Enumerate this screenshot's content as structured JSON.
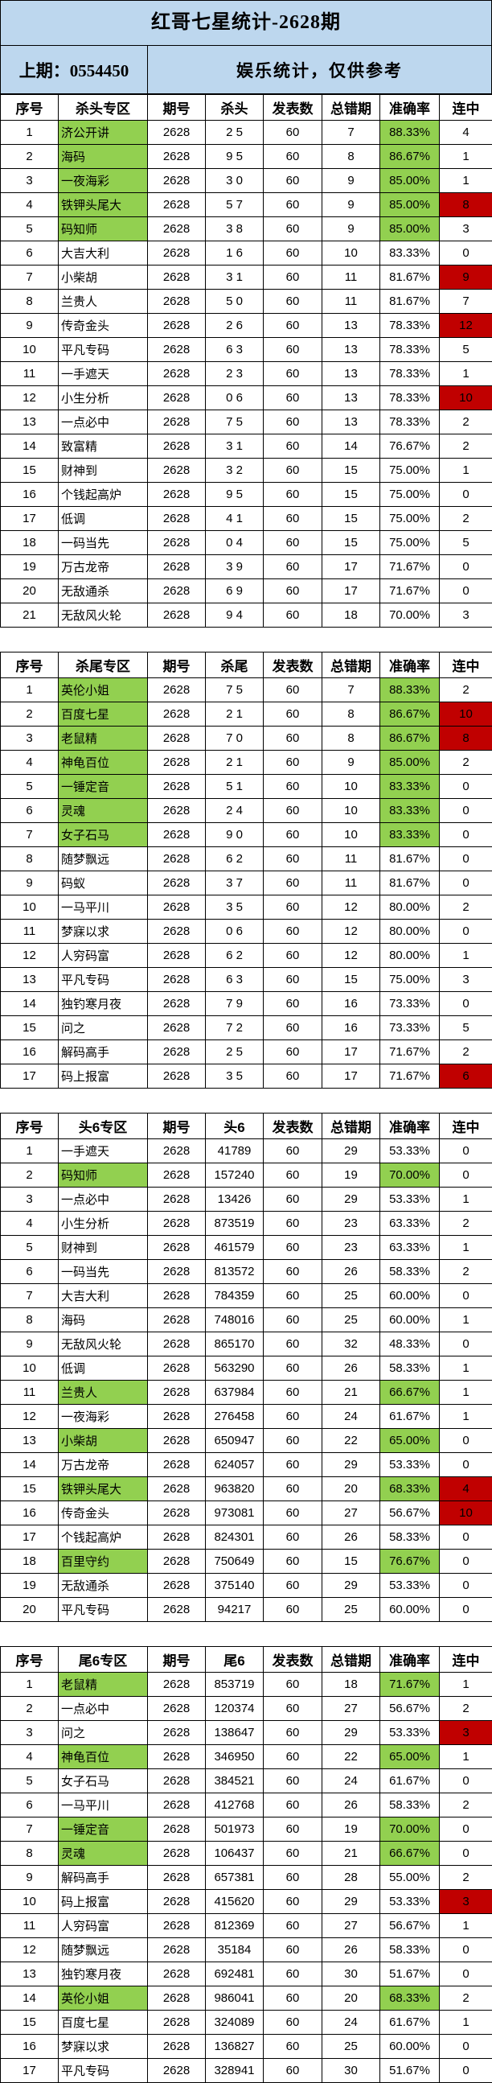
{
  "page": {
    "title": "红哥七星统计-2628期",
    "last_issue": "上期：0554450",
    "disclaimer": "娱乐统计，仅供参考"
  },
  "colors": {
    "header_bg": "#bdd7ee",
    "highlight_green": "#92d050",
    "highlight_red": "#c00000",
    "border": "#000000"
  },
  "legend": {
    "flags_note": "n = name cell green, r = rate cell green, s = streak cell red"
  },
  "tables": [
    {
      "section": "kill-head",
      "headers": [
        "序号",
        "杀头专区",
        "期号",
        "杀头",
        "发表数",
        "总错期",
        "准确率",
        "连中"
      ],
      "rows": [
        [
          "1",
          "济公开讲",
          "2628",
          "2 5",
          "60",
          "7",
          "88.33%",
          "4",
          "nr"
        ],
        [
          "2",
          "海码",
          "2628",
          "9 5",
          "60",
          "8",
          "86.67%",
          "1",
          "nr"
        ],
        [
          "3",
          "一夜海彩",
          "2628",
          "3 0",
          "60",
          "9",
          "85.00%",
          "1",
          "nr"
        ],
        [
          "4",
          "铁钾头尾大",
          "2628",
          "5 7",
          "60",
          "9",
          "85.00%",
          "8",
          "nrs"
        ],
        [
          "5",
          "码知师",
          "2628",
          "3 8",
          "60",
          "9",
          "85.00%",
          "3",
          "nr"
        ],
        [
          "6",
          "大吉大利",
          "2628",
          "1 6",
          "60",
          "10",
          "83.33%",
          "0",
          ""
        ],
        [
          "7",
          "小柴胡",
          "2628",
          "3 1",
          "60",
          "11",
          "81.67%",
          "9",
          "s"
        ],
        [
          "8",
          "兰贵人",
          "2628",
          "5 0",
          "60",
          "11",
          "81.67%",
          "7",
          ""
        ],
        [
          "9",
          "传奇金头",
          "2628",
          "2 6",
          "60",
          "13",
          "78.33%",
          "12",
          "s"
        ],
        [
          "10",
          "平凡专码",
          "2628",
          "6 3",
          "60",
          "13",
          "78.33%",
          "5",
          ""
        ],
        [
          "11",
          "一手遮天",
          "2628",
          "2 3",
          "60",
          "13",
          "78.33%",
          "1",
          ""
        ],
        [
          "12",
          "小生分析",
          "2628",
          "0 6",
          "60",
          "13",
          "78.33%",
          "10",
          "s"
        ],
        [
          "13",
          "一点必中",
          "2628",
          "7 5",
          "60",
          "13",
          "78.33%",
          "2",
          ""
        ],
        [
          "14",
          "致富精",
          "2628",
          "3 1",
          "60",
          "14",
          "76.67%",
          "2",
          ""
        ],
        [
          "15",
          "财神到",
          "2628",
          "3 2",
          "60",
          "15",
          "75.00%",
          "1",
          ""
        ],
        [
          "16",
          "个钱起高炉",
          "2628",
          "9 5",
          "60",
          "15",
          "75.00%",
          "0",
          ""
        ],
        [
          "17",
          "低调",
          "2628",
          "4 1",
          "60",
          "15",
          "75.00%",
          "2",
          ""
        ],
        [
          "18",
          "一码当先",
          "2628",
          "0 4",
          "60",
          "15",
          "75.00%",
          "5",
          ""
        ],
        [
          "19",
          "万古龙帝",
          "2628",
          "3 9",
          "60",
          "17",
          "71.67%",
          "0",
          ""
        ],
        [
          "20",
          "无敌通杀",
          "2628",
          "6 9",
          "60",
          "17",
          "71.67%",
          "0",
          ""
        ],
        [
          "21",
          "无敌风火轮",
          "2628",
          "9 4",
          "60",
          "18",
          "70.00%",
          "3",
          ""
        ]
      ]
    },
    {
      "section": "kill-tail",
      "headers": [
        "序号",
        "杀尾专区",
        "期号",
        "杀尾",
        "发表数",
        "总错期",
        "准确率",
        "连中"
      ],
      "rows": [
        [
          "1",
          "英伦小姐",
          "2628",
          "7 5",
          "60",
          "7",
          "88.33%",
          "2",
          "nr"
        ],
        [
          "2",
          "百度七星",
          "2628",
          "2 1",
          "60",
          "8",
          "86.67%",
          "10",
          "nrs"
        ],
        [
          "3",
          "老鼠精",
          "2628",
          "7 0",
          "60",
          "8",
          "86.67%",
          "8",
          "nrs"
        ],
        [
          "4",
          "神龟百位",
          "2628",
          "2 1",
          "60",
          "9",
          "85.00%",
          "2",
          "nr"
        ],
        [
          "5",
          "一锤定音",
          "2628",
          "5 1",
          "60",
          "10",
          "83.33%",
          "0",
          "nr"
        ],
        [
          "6",
          "灵魂",
          "2628",
          "2 4",
          "60",
          "10",
          "83.33%",
          "0",
          "nr"
        ],
        [
          "7",
          "女子石马",
          "2628",
          "9 0",
          "60",
          "10",
          "83.33%",
          "0",
          "nr"
        ],
        [
          "8",
          "随梦飘远",
          "2628",
          "6 2",
          "60",
          "11",
          "81.67%",
          "0",
          ""
        ],
        [
          "9",
          "码蚁",
          "2628",
          "3 7",
          "60",
          "11",
          "81.67%",
          "0",
          ""
        ],
        [
          "10",
          "一马平川",
          "2628",
          "3 5",
          "60",
          "12",
          "80.00%",
          "2",
          ""
        ],
        [
          "11",
          "梦寐以求",
          "2628",
          "0 6",
          "60",
          "12",
          "80.00%",
          "0",
          ""
        ],
        [
          "12",
          "人穷码富",
          "2628",
          "6 2",
          "60",
          "12",
          "80.00%",
          "1",
          ""
        ],
        [
          "13",
          "平凡专码",
          "2628",
          "6 3",
          "60",
          "15",
          "75.00%",
          "3",
          ""
        ],
        [
          "14",
          "独钓寒月夜",
          "2628",
          "7 9",
          "60",
          "16",
          "73.33%",
          "0",
          ""
        ],
        [
          "15",
          "问之",
          "2628",
          "7 2",
          "60",
          "16",
          "73.33%",
          "5",
          ""
        ],
        [
          "16",
          "解码高手",
          "2628",
          "2 5",
          "60",
          "17",
          "71.67%",
          "2",
          ""
        ],
        [
          "17",
          "码上报富",
          "2628",
          "3 5",
          "60",
          "17",
          "71.67%",
          "6",
          "s"
        ]
      ]
    },
    {
      "section": "head6",
      "headers": [
        "序号",
        "头6专区",
        "期号",
        "头6",
        "发表数",
        "总错期",
        "准确率",
        "连中"
      ],
      "rows": [
        [
          "1",
          "一手遮天",
          "2628",
          "41789",
          "60",
          "29",
          "53.33%",
          "0",
          ""
        ],
        [
          "2",
          "码知师",
          "2628",
          "157240",
          "60",
          "19",
          "70.00%",
          "0",
          "nr"
        ],
        [
          "3",
          "一点必中",
          "2628",
          "13426",
          "60",
          "29",
          "53.33%",
          "1",
          ""
        ],
        [
          "4",
          "小生分析",
          "2628",
          "873519",
          "60",
          "23",
          "63.33%",
          "2",
          ""
        ],
        [
          "5",
          "财神到",
          "2628",
          "461579",
          "60",
          "23",
          "63.33%",
          "1",
          ""
        ],
        [
          "6",
          "一码当先",
          "2628",
          "813572",
          "60",
          "26",
          "58.33%",
          "2",
          ""
        ],
        [
          "7",
          "大吉大利",
          "2628",
          "784359",
          "60",
          "25",
          "60.00%",
          "0",
          ""
        ],
        [
          "8",
          "海码",
          "2628",
          "748016",
          "60",
          "25",
          "60.00%",
          "1",
          ""
        ],
        [
          "9",
          "无敌风火轮",
          "2628",
          "865170",
          "60",
          "32",
          "48.33%",
          "0",
          ""
        ],
        [
          "10",
          "低调",
          "2628",
          "563290",
          "60",
          "26",
          "58.33%",
          "1",
          ""
        ],
        [
          "11",
          "兰贵人",
          "2628",
          "637984",
          "60",
          "21",
          "66.67%",
          "1",
          "nr"
        ],
        [
          "12",
          "一夜海彩",
          "2628",
          "276458",
          "60",
          "24",
          "61.67%",
          "1",
          ""
        ],
        [
          "13",
          "小柴胡",
          "2628",
          "650947",
          "60",
          "22",
          "65.00%",
          "0",
          "nr"
        ],
        [
          "14",
          "万古龙帝",
          "2628",
          "624057",
          "60",
          "29",
          "53.33%",
          "0",
          ""
        ],
        [
          "15",
          "铁钾头尾大",
          "2628",
          "963820",
          "60",
          "20",
          "68.33%",
          "4",
          "nrs"
        ],
        [
          "16",
          "传奇金头",
          "2628",
          "973081",
          "60",
          "27",
          "56.67%",
          "10",
          "s"
        ],
        [
          "17",
          "个钱起高炉",
          "2628",
          "824301",
          "60",
          "26",
          "58.33%",
          "0",
          ""
        ],
        [
          "18",
          "百里守约",
          "2628",
          "750649",
          "60",
          "15",
          "76.67%",
          "0",
          "nr"
        ],
        [
          "19",
          "无敌通杀",
          "2628",
          "375140",
          "60",
          "29",
          "53.33%",
          "0",
          ""
        ],
        [
          "20",
          "平凡专码",
          "2628",
          "94217",
          "60",
          "25",
          "60.00%",
          "0",
          ""
        ]
      ]
    },
    {
      "section": "tail6",
      "headers": [
        "序号",
        "尾6专区",
        "期号",
        "尾6",
        "发表数",
        "总错期",
        "准确率",
        "连中"
      ],
      "rows": [
        [
          "1",
          "老鼠精",
          "2628",
          "853719",
          "60",
          "18",
          "71.67%",
          "1",
          "nr"
        ],
        [
          "2",
          "一点必中",
          "2628",
          "120374",
          "60",
          "27",
          "56.67%",
          "2",
          ""
        ],
        [
          "3",
          "问之",
          "2628",
          "138647",
          "60",
          "29",
          "53.33%",
          "3",
          "s"
        ],
        [
          "4",
          "神龟百位",
          "2628",
          "346950",
          "60",
          "22",
          "65.00%",
          "1",
          "nr"
        ],
        [
          "5",
          "女子石马",
          "2628",
          "384521",
          "60",
          "24",
          "61.67%",
          "0",
          ""
        ],
        [
          "6",
          "一马平川",
          "2628",
          "412768",
          "60",
          "26",
          "58.33%",
          "2",
          ""
        ],
        [
          "7",
          "一锤定音",
          "2628",
          "501973",
          "60",
          "19",
          "70.00%",
          "0",
          "nr"
        ],
        [
          "8",
          "灵魂",
          "2628",
          "106437",
          "60",
          "21",
          "66.67%",
          "0",
          "nr"
        ],
        [
          "9",
          "解码高手",
          "2628",
          "657381",
          "60",
          "28",
          "55.00%",
          "2",
          ""
        ],
        [
          "10",
          "码上报富",
          "2628",
          "415620",
          "60",
          "29",
          "53.33%",
          "3",
          "s"
        ],
        [
          "11",
          "人穷码富",
          "2628",
          "812369",
          "60",
          "27",
          "56.67%",
          "1",
          ""
        ],
        [
          "12",
          "随梦飘远",
          "2628",
          "35184",
          "60",
          "26",
          "58.33%",
          "0",
          ""
        ],
        [
          "13",
          "独钓寒月夜",
          "2628",
          "692481",
          "60",
          "30",
          "51.67%",
          "0",
          ""
        ],
        [
          "14",
          "英伦小姐",
          "2628",
          "986041",
          "60",
          "20",
          "68.33%",
          "2",
          "nr"
        ],
        [
          "15",
          "百度七星",
          "2628",
          "324089",
          "60",
          "24",
          "61.67%",
          "1",
          ""
        ],
        [
          "16",
          "梦寐以求",
          "2628",
          "136827",
          "60",
          "25",
          "60.00%",
          "0",
          ""
        ],
        [
          "17",
          "平凡专码",
          "2628",
          "328941",
          "60",
          "30",
          "51.67%",
          "0",
          ""
        ]
      ]
    }
  ]
}
